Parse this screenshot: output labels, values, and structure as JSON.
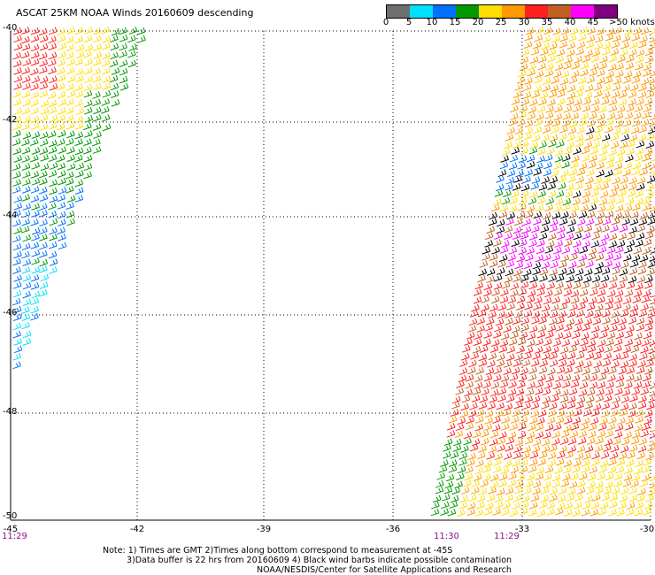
{
  "title": "ASCAT 25KM NOAA Winds 20160609 descending",
  "colorbar": {
    "labels": [
      "0",
      "5",
      "10",
      "15",
      "20",
      "25",
      "30",
      "35",
      "40",
      "45",
      ">50 knots"
    ],
    "colors": [
      "#6e6e6e",
      "#00e0ff",
      "#0070ff",
      "#009900",
      "#ffdd00",
      "#ff9900",
      "#ff2020",
      "#c06020",
      "#ff00ff",
      "#800080"
    ]
  },
  "axes": {
    "lon_labels": [
      "-45",
      "-42",
      "-39",
      "-36",
      "-33",
      "-30"
    ],
    "lat_labels": [
      "-40",
      "-42",
      "-44",
      "-46",
      "-48",
      "-50"
    ]
  },
  "pass_times": [
    "11:29",
    "11:30",
    "11:29"
  ],
  "notes": [
    "Note: 1) Times are GMT 2)Times along bottom correspond to measurement at -45S",
    "3)Data buffer is 22 hrs from 20160609 4) Black wind barbs indicate possible contamination",
    "NOAA/NESDIS/Center for Satellite Applications and Research"
  ]
}
